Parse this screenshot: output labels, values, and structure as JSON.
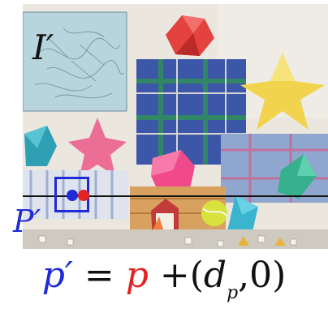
{
  "image_label": "I′",
  "patch_label": "P′",
  "equation": {
    "lhs": "p′",
    "equals": " = ",
    "p": "p",
    "plus": " +(",
    "d": "d",
    "sub": "p",
    "tail": ",0)"
  },
  "colors": {
    "blue": "#1f2bd6",
    "red": "#e52222",
    "line": "#111111"
  }
}
